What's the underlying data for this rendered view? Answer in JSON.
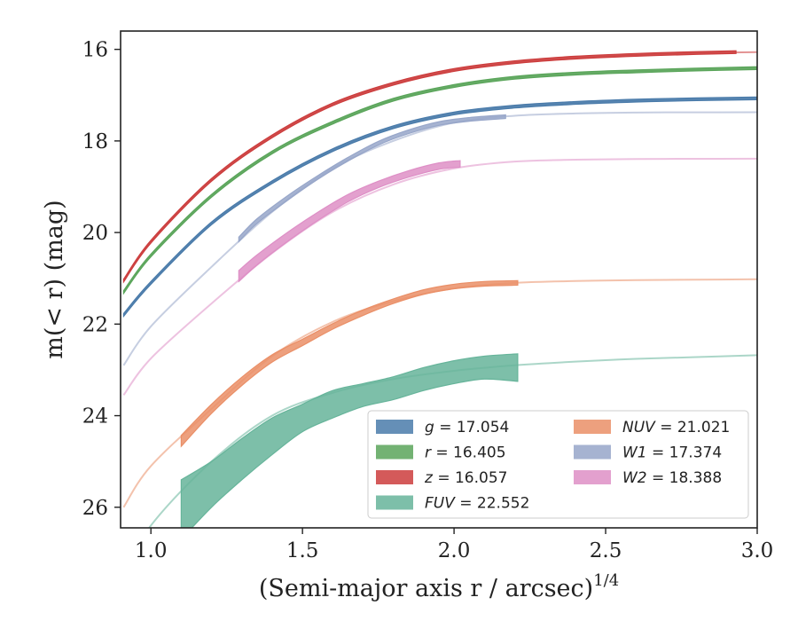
{
  "chart_data": {
    "type": "area",
    "xlabel": "(Semi-major axis r / arcsec)",
    "xlabel_exponent": "1/4",
    "ylabel": "m(< r) (mag)",
    "xlim": [
      0.9,
      3.0
    ],
    "ylim": [
      26.45,
      15.6
    ],
    "y_inverted": true,
    "x_ticks": [
      1.0,
      1.5,
      2.0,
      2.5,
      3.0
    ],
    "x_tick_labels": [
      "1.0",
      "1.5",
      "2.0",
      "2.5",
      "3.0"
    ],
    "y_ticks": [
      16,
      18,
      20,
      22,
      24,
      26
    ],
    "y_tick_labels": [
      "16",
      "18",
      "20",
      "22",
      "24",
      "26"
    ],
    "grid": false,
    "legend_position": "lower-right",
    "series": [
      {
        "name": "g = 17.054",
        "band": "g",
        "total_mag": "17.054",
        "color": "#4a7baa",
        "model": {
          "x": [
            0.91,
            1.0,
            1.2,
            1.4,
            1.6,
            1.8,
            2.0,
            2.2,
            2.4,
            2.6,
            2.8,
            3.0
          ],
          "y": [
            21.8,
            21.1,
            19.8,
            18.9,
            18.2,
            17.7,
            17.4,
            17.25,
            17.17,
            17.12,
            17.09,
            17.07
          ]
        },
        "data": {
          "x": [
            0.91,
            1.0,
            1.2,
            1.4,
            1.6,
            1.8,
            2.0,
            2.2,
            2.4,
            2.6,
            2.8,
            3.0
          ],
          "y": [
            21.8,
            21.1,
            19.8,
            18.9,
            18.2,
            17.7,
            17.4,
            17.25,
            17.17,
            17.12,
            17.09,
            17.07
          ],
          "err": [
            0.03,
            0.03,
            0.03,
            0.03,
            0.03,
            0.03,
            0.03,
            0.03,
            0.03,
            0.03,
            0.03,
            0.03
          ]
        }
      },
      {
        "name": "r = 16.405",
        "band": "r",
        "total_mag": "16.405",
        "color": "#5aa55a",
        "model": {
          "x": [
            0.91,
            1.0,
            1.2,
            1.4,
            1.6,
            1.8,
            2.0,
            2.2,
            2.4,
            2.6,
            2.8,
            3.0
          ],
          "y": [
            21.3,
            20.5,
            19.2,
            18.25,
            17.6,
            17.1,
            16.8,
            16.62,
            16.53,
            16.48,
            16.44,
            16.41
          ]
        },
        "data": {
          "x": [
            0.91,
            1.0,
            1.2,
            1.4,
            1.6,
            1.8,
            2.0,
            2.2,
            2.4,
            2.6,
            2.8,
            3.0
          ],
          "y": [
            21.3,
            20.5,
            19.2,
            18.25,
            17.6,
            17.1,
            16.8,
            16.62,
            16.53,
            16.48,
            16.44,
            16.41
          ],
          "err": [
            0.03,
            0.03,
            0.03,
            0.03,
            0.03,
            0.03,
            0.03,
            0.03,
            0.03,
            0.03,
            0.03,
            0.03
          ]
        }
      },
      {
        "name": "z = 16.057",
        "band": "z",
        "total_mag": "16.057",
        "color": "#cc3d3d",
        "model": {
          "x": [
            0.91,
            1.0,
            1.2,
            1.4,
            1.6,
            1.8,
            2.0,
            2.2,
            2.4,
            2.6,
            2.8,
            3.0
          ],
          "y": [
            21.05,
            20.2,
            18.85,
            17.9,
            17.2,
            16.75,
            16.45,
            16.28,
            16.18,
            16.12,
            16.08,
            16.06
          ]
        },
        "data": {
          "x": [
            0.91,
            1.0,
            1.2,
            1.4,
            1.6,
            1.8,
            2.0,
            2.2,
            2.4,
            2.6,
            2.8,
            2.93
          ],
          "y": [
            21.05,
            20.2,
            18.85,
            17.9,
            17.2,
            16.75,
            16.45,
            16.28,
            16.18,
            16.12,
            16.08,
            16.06
          ],
          "err": [
            0.03,
            0.03,
            0.03,
            0.03,
            0.03,
            0.03,
            0.03,
            0.03,
            0.03,
            0.03,
            0.03,
            0.03
          ]
        }
      },
      {
        "name": "FUV = 22.552",
        "band": "FUV",
        "total_mag": "22.552",
        "color": "#66b49a",
        "model": {
          "x": [
            0.91,
            1.0,
            1.2,
            1.4,
            1.6,
            1.8,
            2.0,
            2.2,
            2.4,
            2.6,
            2.8,
            3.0
          ],
          "y": [
            27.5,
            26.4,
            25.0,
            24.0,
            23.5,
            23.2,
            23.02,
            22.9,
            22.82,
            22.76,
            22.72,
            22.68
          ]
        },
        "data": {
          "x": [
            1.1,
            1.2,
            1.3,
            1.4,
            1.5,
            1.6,
            1.7,
            1.8,
            1.9,
            2.0,
            2.1,
            2.21
          ],
          "y": [
            26.05,
            25.5,
            24.95,
            24.45,
            24.05,
            23.75,
            23.55,
            23.4,
            23.2,
            23.05,
            22.95,
            22.95
          ],
          "err": [
            0.65,
            0.5,
            0.45,
            0.4,
            0.3,
            0.3,
            0.25,
            0.25,
            0.25,
            0.25,
            0.25,
            0.3
          ]
        }
      },
      {
        "name": "NUV = 21.021",
        "band": "NUV",
        "total_mag": "21.021",
        "color": "#ea8f67",
        "model": {
          "x": [
            0.91,
            1.0,
            1.2,
            1.4,
            1.6,
            1.8,
            2.0,
            2.2,
            2.4,
            2.6,
            2.8,
            3.0
          ],
          "y": [
            26.0,
            25.1,
            23.85,
            22.7,
            21.95,
            21.5,
            21.22,
            21.1,
            21.06,
            21.04,
            21.03,
            21.02
          ]
        },
        "data": {
          "x": [
            1.1,
            1.2,
            1.3,
            1.4,
            1.5,
            1.6,
            1.7,
            1.8,
            1.9,
            2.0,
            2.1,
            2.21
          ],
          "y": [
            24.55,
            23.85,
            23.25,
            22.75,
            22.4,
            22.05,
            21.75,
            21.5,
            21.3,
            21.18,
            21.12,
            21.1
          ],
          "err": [
            0.12,
            0.1,
            0.09,
            0.08,
            0.07,
            0.06,
            0.06,
            0.05,
            0.05,
            0.05,
            0.05,
            0.05
          ]
        }
      },
      {
        "name": "W1 = 17.374",
        "band": "W1",
        "total_mag": "17.374",
        "color": "#97a6c9",
        "model": {
          "x": [
            0.91,
            1.0,
            1.2,
            1.4,
            1.6,
            1.8,
            2.0,
            2.2,
            2.4,
            2.6,
            2.8,
            3.0
          ],
          "y": [
            22.9,
            22.05,
            20.75,
            19.55,
            18.6,
            18.0,
            17.6,
            17.45,
            17.4,
            17.38,
            17.375,
            17.374
          ]
        },
        "data": {
          "x": [
            1.29,
            1.35,
            1.45,
            1.55,
            1.65,
            1.75,
            1.85,
            1.95,
            2.05,
            2.17
          ],
          "y": [
            20.15,
            19.75,
            19.25,
            18.8,
            18.4,
            18.05,
            17.8,
            17.62,
            17.53,
            17.47
          ],
          "err": [
            0.05,
            0.05,
            0.05,
            0.04,
            0.04,
            0.04,
            0.04,
            0.04,
            0.04,
            0.04
          ]
        }
      },
      {
        "name": "W2 = 18.388",
        "band": "W2",
        "total_mag": "18.388",
        "color": "#de8fc6",
        "model": {
          "x": [
            0.91,
            1.0,
            1.2,
            1.4,
            1.6,
            1.8,
            2.0,
            2.2,
            2.4,
            2.6,
            2.8,
            3.0
          ],
          "y": [
            23.55,
            22.75,
            21.55,
            20.45,
            19.55,
            18.95,
            18.6,
            18.45,
            18.41,
            18.395,
            18.39,
            18.388
          ]
        },
        "data": {
          "x": [
            1.29,
            1.35,
            1.45,
            1.55,
            1.65,
            1.75,
            1.85,
            1.95,
            2.02
          ],
          "y": [
            20.95,
            20.6,
            20.1,
            19.65,
            19.25,
            18.95,
            18.72,
            18.55,
            18.5
          ],
          "err": [
            0.12,
            0.11,
            0.1,
            0.09,
            0.08,
            0.07,
            0.07,
            0.07,
            0.07
          ]
        }
      }
    ]
  }
}
